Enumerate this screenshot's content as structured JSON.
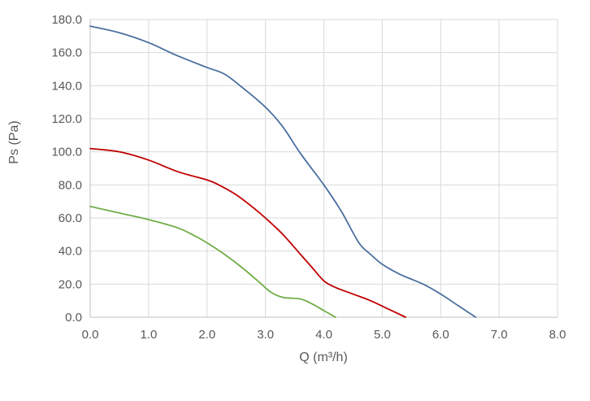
{
  "chart_data": {
    "type": "line",
    "title": "",
    "xlabel": "Q (m³/h)",
    "ylabel": "Ps (Pa)",
    "xlim": [
      0,
      8
    ],
    "ylim": [
      0,
      180
    ],
    "x_ticks": [
      "0.0",
      "1.0",
      "2.0",
      "3.0",
      "4.0",
      "5.0",
      "6.0",
      "7.0",
      "8.0"
    ],
    "y_ticks": [
      "0.0",
      "20.0",
      "40.0",
      "60.0",
      "80.0",
      "100.0",
      "120.0",
      "140.0",
      "160.0",
      "180.0"
    ],
    "grid": true,
    "legend": "none",
    "series": [
      {
        "color": "#4a6fa0",
        "points": [
          [
            0.0,
            176
          ],
          [
            0.5,
            172
          ],
          [
            1.0,
            166
          ],
          [
            1.5,
            158
          ],
          [
            2.0,
            151
          ],
          [
            2.3,
            147
          ],
          [
            2.6,
            139
          ],
          [
            3.0,
            127
          ],
          [
            3.3,
            115
          ],
          [
            3.6,
            99
          ],
          [
            4.0,
            80
          ],
          [
            4.3,
            64
          ],
          [
            4.6,
            45
          ],
          [
            4.8,
            38
          ],
          [
            5.0,
            32
          ],
          [
            5.3,
            26
          ],
          [
            5.7,
            20
          ],
          [
            6.0,
            14
          ],
          [
            6.3,
            7
          ],
          [
            6.6,
            0
          ]
        ]
      },
      {
        "color": "#c00000",
        "points": [
          [
            0.0,
            102
          ],
          [
            0.5,
            100
          ],
          [
            1.0,
            95
          ],
          [
            1.5,
            88
          ],
          [
            2.0,
            83
          ],
          [
            2.2,
            80
          ],
          [
            2.5,
            74
          ],
          [
            2.8,
            66
          ],
          [
            3.0,
            60
          ],
          [
            3.3,
            50
          ],
          [
            3.6,
            38
          ],
          [
            3.8,
            30
          ],
          [
            4.0,
            22
          ],
          [
            4.2,
            18
          ],
          [
            4.5,
            14
          ],
          [
            4.8,
            10
          ],
          [
            5.1,
            5
          ],
          [
            5.4,
            0
          ]
        ]
      },
      {
        "color": "#70ad47",
        "points": [
          [
            0.0,
            67
          ],
          [
            0.5,
            63
          ],
          [
            1.0,
            59
          ],
          [
            1.5,
            54
          ],
          [
            1.8,
            49
          ],
          [
            2.0,
            45
          ],
          [
            2.3,
            38
          ],
          [
            2.6,
            30
          ],
          [
            2.9,
            21
          ],
          [
            3.1,
            15
          ],
          [
            3.3,
            12
          ],
          [
            3.6,
            11
          ],
          [
            3.8,
            8
          ],
          [
            4.0,
            4
          ],
          [
            4.2,
            0
          ]
        ]
      }
    ]
  }
}
